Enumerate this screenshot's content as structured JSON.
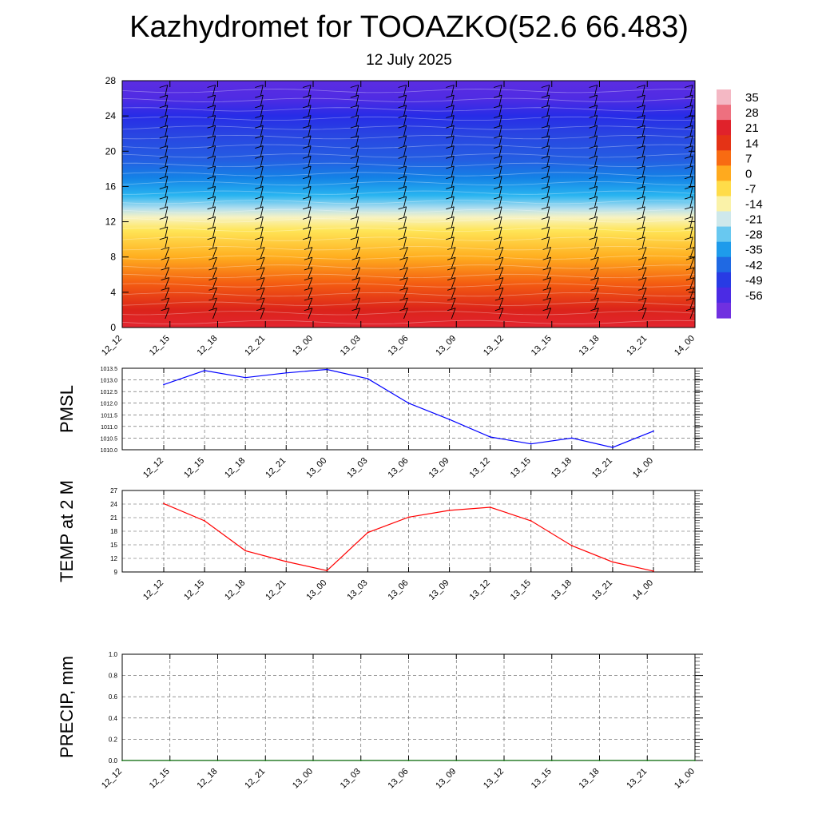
{
  "title": "Kazhydromet for TOOAZKO(52.6 66.483)",
  "subtitle": "12 July 2025",
  "chart_data": [
    {
      "type": "heatmap",
      "description_of_field": "time-height temperature cross-section with wind barbs",
      "x_tick_labels": [
        "12_12",
        "12_15",
        "12_18",
        "12_21",
        "13_00",
        "13_03",
        "13_06",
        "13_09",
        "13_12",
        "13_15",
        "13_18",
        "13_21",
        "14_00"
      ],
      "y_tick_labels": [
        "0",
        "4",
        "8",
        "12",
        "16",
        "20",
        "24",
        "28"
      ],
      "ylim": [
        0,
        28
      ],
      "colorbar_labels": [
        "35",
        "28",
        "21",
        "14",
        "7",
        "0",
        "-7",
        "-14",
        "-21",
        "-28",
        "-35",
        "-42",
        "-49",
        "-56"
      ],
      "colorbar_stops": [
        {
          "value": 35,
          "color": "#f4b8c4"
        },
        {
          "value": 28,
          "color": "#e8283a"
        },
        {
          "value": 21,
          "color": "#d81c1c"
        },
        {
          "value": 14,
          "color": "#f04a10"
        },
        {
          "value": 7,
          "color": "#ff8c14"
        },
        {
          "value": 0,
          "color": "#ffc828"
        },
        {
          "value": -7,
          "color": "#fff06a"
        },
        {
          "value": -14,
          "color": "#f4f4e6"
        },
        {
          "value": -21,
          "color": "#a8dcf0"
        },
        {
          "value": -28,
          "color": "#28b4f0"
        },
        {
          "value": -35,
          "color": "#1482e6"
        },
        {
          "value": -42,
          "color": "#2a50e0"
        },
        {
          "value": -49,
          "color": "#2626e8"
        },
        {
          "value": -56,
          "color": "#7030e0"
        }
      ],
      "vertical_profile": [
        {
          "y": 0,
          "value": 26
        },
        {
          "y": 2,
          "value": 20
        },
        {
          "y": 5,
          "value": 12
        },
        {
          "y": 8,
          "value": 3
        },
        {
          "y": 11,
          "value": -5
        },
        {
          "y": 12.5,
          "value": -12
        },
        {
          "y": 13.5,
          "value": -20
        },
        {
          "y": 15,
          "value": -28
        },
        {
          "y": 17,
          "value": -35
        },
        {
          "y": 19,
          "value": -40
        },
        {
          "y": 22,
          "value": -44
        },
        {
          "y": 24,
          "value": -48
        },
        {
          "y": 26,
          "value": -53
        },
        {
          "y": 28,
          "value": -54
        }
      ]
    },
    {
      "type": "line",
      "ylabel": "PMSL",
      "x": [
        "12_12",
        "12_15",
        "12_18",
        "12_21",
        "13_00",
        "13_03",
        "13_06",
        "13_09",
        "13_12",
        "13_15",
        "13_18",
        "13_21",
        "14_00"
      ],
      "series": [
        {
          "values": [
            1012.8,
            1013.4,
            1013.1,
            1013.3,
            1013.45,
            1013.05,
            1012.0,
            1011.3,
            1010.55,
            1010.25,
            1010.5,
            1010.1,
            1010.8
          ]
        }
      ],
      "ylim": [
        1010.0,
        1013.5
      ],
      "y_tick_labels": [
        "1010.0",
        "1010.5",
        "1011.0",
        "1011.5",
        "1012.0",
        "1012.5",
        "1013.0",
        "1013.5"
      ],
      "color": "#0000ff",
      "grid": true
    },
    {
      "type": "line",
      "ylabel": "TEMP at 2 M",
      "x": [
        "12_12",
        "12_15",
        "12_18",
        "12_21",
        "13_00",
        "13_03",
        "13_06",
        "13_09",
        "13_12",
        "13_15",
        "13_18",
        "13_21",
        "14_00"
      ],
      "series": [
        {
          "values": [
            24.1,
            20.3,
            13.7,
            11.3,
            9.3,
            17.7,
            21.1,
            22.6,
            23.3,
            20.3,
            14.8,
            11.2,
            9.2
          ]
        }
      ],
      "ylim": [
        9,
        27
      ],
      "y_tick_labels": [
        "9",
        "12",
        "15",
        "18",
        "21",
        "24",
        "27"
      ],
      "color": "#ff0000",
      "grid": true
    },
    {
      "type": "line",
      "ylabel": "PRECIP, mm",
      "x": [
        "12_12",
        "12_15",
        "12_18",
        "12_21",
        "13_00",
        "13_03",
        "13_06",
        "13_09",
        "13_12",
        "13_15",
        "13_18",
        "13_21",
        "14_00"
      ],
      "series": [
        {
          "values": [
            0,
            0,
            0,
            0,
            0,
            0,
            0,
            0,
            0,
            0,
            0,
            0,
            0
          ]
        }
      ],
      "ylim": [
        0,
        1.0
      ],
      "y_tick_labels": [
        "0.0",
        "0.2",
        "0.4",
        "0.6",
        "0.8",
        "1.0"
      ],
      "color": "#006400",
      "grid": true
    }
  ]
}
